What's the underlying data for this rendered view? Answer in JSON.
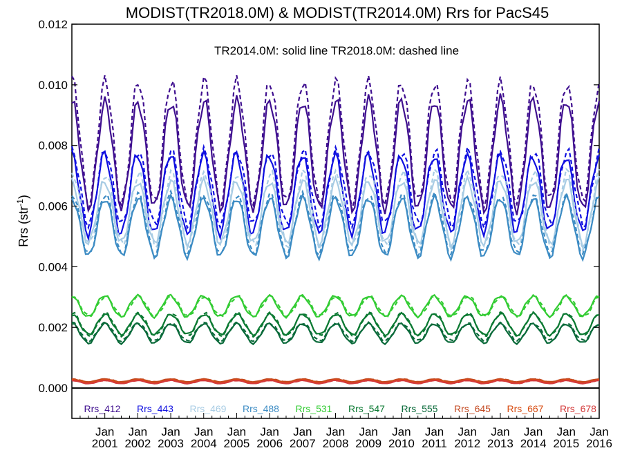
{
  "chart_data": {
    "type": "line",
    "title": "MODIST(TR2018.0M) & MODIST(TR2014.0M)  Rrs for PacS45",
    "annotation": "TR2014.0M: solid line   TR2018.0M: dashed line",
    "ylabel": "Rrs (str",
    "ylabel_sup": "-1",
    "ylabel_close": ")",
    "xlabel": "",
    "ylim": [
      -0.001,
      0.012
    ],
    "yticks": [
      {
        "value": 0.0,
        "label": "0.000"
      },
      {
        "value": 0.002,
        "label": "0.002"
      },
      {
        "value": 0.004,
        "label": "0.004"
      },
      {
        "value": 0.006,
        "label": "0.006"
      },
      {
        "value": 0.008,
        "label": "0.008"
      },
      {
        "value": 0.01,
        "label": "0.010"
      },
      {
        "value": 0.012,
        "label": "0.012"
      }
    ],
    "xlim": [
      2000.0,
      2016.0
    ],
    "xticks": [
      {
        "value": 2001.0,
        "month": "Jan",
        "year": "2001"
      },
      {
        "value": 2002.0,
        "month": "Jan",
        "year": "2002"
      },
      {
        "value": 2003.0,
        "month": "Jan",
        "year": "2003"
      },
      {
        "value": 2004.0,
        "month": "Jan",
        "year": "2004"
      },
      {
        "value": 2005.0,
        "month": "Jan",
        "year": "2005"
      },
      {
        "value": 2006.0,
        "month": "Jan",
        "year": "2006"
      },
      {
        "value": 2007.0,
        "month": "Jan",
        "year": "2007"
      },
      {
        "value": 2008.0,
        "month": "Jan",
        "year": "2008"
      },
      {
        "value": 2009.0,
        "month": "Jan",
        "year": "2009"
      },
      {
        "value": 2010.0,
        "month": "Jan",
        "year": "2010"
      },
      {
        "value": 2011.0,
        "month": "Jan",
        "year": "2011"
      },
      {
        "value": 2012.0,
        "month": "Jan",
        "year": "2012"
      },
      {
        "value": 2013.0,
        "month": "Jan",
        "year": "2013"
      },
      {
        "value": 2014.0,
        "month": "Jan",
        "year": "2014"
      },
      {
        "value": 2015.0,
        "month": "Jan",
        "year": "2015"
      },
      {
        "value": 2016.0,
        "month": "Jan",
        "year": "2016"
      }
    ],
    "zero_line": 0.0,
    "line_styles": {
      "TR2014.0M": "solid",
      "TR2018.0M": "dashed"
    },
    "series": [
      {
        "name": "Rrs_412",
        "color": "#3f0f8f",
        "solid_mean": 0.0077,
        "solid_amp": 0.0017,
        "dashed_mean": 0.0081,
        "dashed_amp": 0.0019
      },
      {
        "name": "Rrs_443",
        "color": "#1010e0",
        "solid_mean": 0.0064,
        "solid_amp": 0.00125,
        "dashed_mean": 0.0066,
        "dashed_amp": 0.0013
      },
      {
        "name": "Rrs_469",
        "color": "#a8cce4",
        "solid_mean": 0.0058,
        "solid_amp": 0.0011,
        "dashed_mean": 0.0059,
        "dashed_amp": 0.00115
      },
      {
        "name": "Rrs_488",
        "color": "#3d8cc4",
        "solid_mean": 0.0053,
        "solid_amp": 0.0009,
        "dashed_mean": 0.0054,
        "dashed_amp": 0.00095
      },
      {
        "name": "Rrs_531",
        "color": "#33cc33",
        "solid_mean": 0.0027,
        "solid_amp": 0.00035,
        "dashed_mean": 0.0027,
        "dashed_amp": 0.00035
      },
      {
        "name": "Rrs_547",
        "color": "#0c7a33",
        "solid_mean": 0.0021,
        "solid_amp": 0.00035,
        "dashed_mean": 0.0021,
        "dashed_amp": 0.00035
      },
      {
        "name": "Rrs_555",
        "color": "#0a6a3a",
        "solid_mean": 0.0018,
        "solid_amp": 0.0003,
        "dashed_mean": 0.00185,
        "dashed_amp": 0.0003
      },
      {
        "name": "Rrs_645",
        "color": "#c44a22",
        "solid_mean": 0.00025,
        "solid_amp": 5e-05,
        "dashed_mean": 0.00025,
        "dashed_amp": 5e-05
      },
      {
        "name": "Rrs_667",
        "color": "#d84d12",
        "solid_mean": 0.00022,
        "solid_amp": 5e-05,
        "dashed_mean": 0.00022,
        "dashed_amp": 5e-05
      },
      {
        "name": "Rrs_678",
        "color": "#d43a3a",
        "solid_mean": 0.0002,
        "solid_amp": 5e-05,
        "dashed_mean": 0.0002,
        "dashed_amp": 5e-05
      }
    ],
    "grid": false,
    "legend": "bottom, single row inside plot area"
  }
}
